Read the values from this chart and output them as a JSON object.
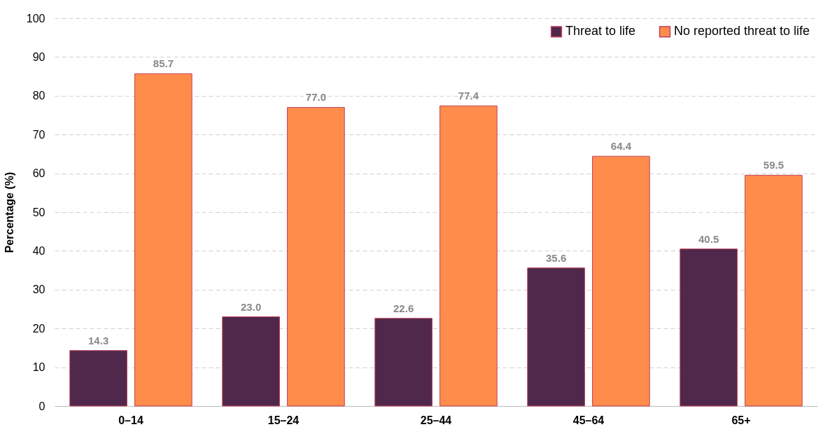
{
  "chart_data": {
    "type": "bar",
    "ylabel": "Percentage (%)",
    "categories": [
      "0–14",
      "15–24",
      "25–44",
      "45–64",
      "65+"
    ],
    "series": [
      {
        "name": "Threat to life",
        "color": "#4f284b",
        "values": [
          14.3,
          23.0,
          22.6,
          35.6,
          40.5
        ],
        "value_labels": [
          "14.3",
          "23.0",
          "22.6",
          "35.6",
          "40.5"
        ]
      },
      {
        "name": "No reported threat to life",
        "color": "#ff8c4b",
        "values": [
          85.7,
          77.0,
          77.4,
          64.4,
          59.5
        ],
        "value_labels": [
          "85.7",
          "77.0",
          "77.4",
          "64.4",
          "59.5"
        ]
      }
    ],
    "ylim": [
      0,
      100
    ],
    "yticks": [
      0,
      10,
      20,
      30,
      40,
      50,
      60,
      70,
      80,
      90,
      100
    ],
    "grid": "y",
    "legend": "top right"
  }
}
